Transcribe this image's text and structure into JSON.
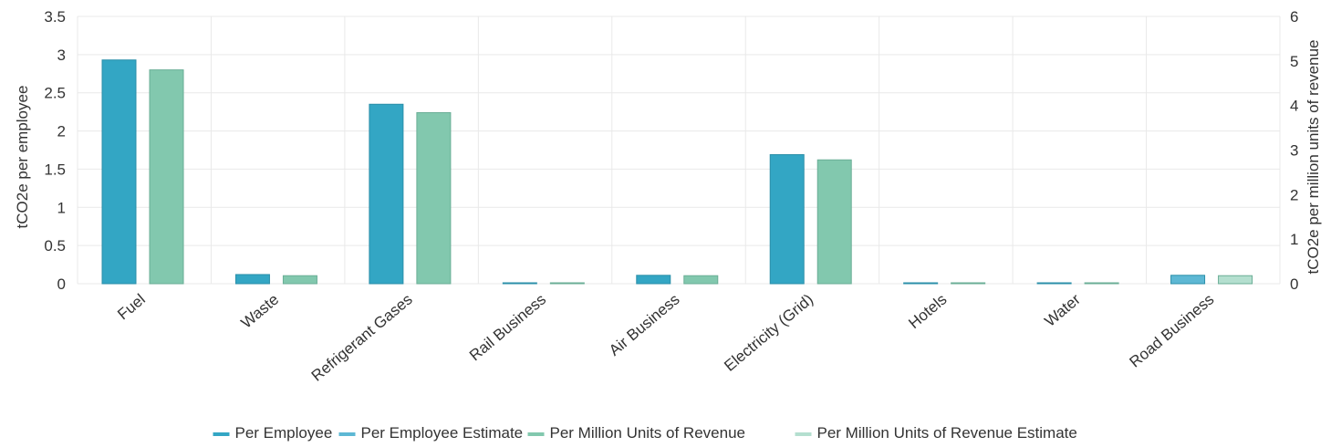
{
  "chart_data": {
    "type": "bar",
    "categories": [
      "Fuel",
      "Waste",
      "Refrigerant Gases",
      "Rail Business",
      "Air Business",
      "Electricity (Grid)",
      "Hotels",
      "Water",
      "Road Business"
    ],
    "series": [
      {
        "name": "Per Employee",
        "axis": "left",
        "color": "#33a6c4",
        "values": [
          2.93,
          0.12,
          2.35,
          0.005,
          0.11,
          1.69,
          0.005,
          0.005,
          null
        ]
      },
      {
        "name": "Per Employee Estimate",
        "axis": "left",
        "color": "#5db8d4",
        "values": [
          null,
          null,
          null,
          null,
          null,
          null,
          null,
          null,
          0.11
        ]
      },
      {
        "name": "Per Million Units of Revenue",
        "axis": "right",
        "color": "#82c8ae",
        "values": [
          4.8,
          0.18,
          3.84,
          0.008,
          0.18,
          2.78,
          0.008,
          0.008,
          null
        ]
      },
      {
        "name": "Per Million Units of Revenue Estimate",
        "axis": "right",
        "color": "#b4dfcf",
        "values": [
          null,
          null,
          null,
          null,
          null,
          null,
          null,
          null,
          0.18
        ]
      }
    ],
    "ylabel": "tCO2e per employee",
    "y2label": "tCO2e per million units of revenue",
    "ylim": [
      0,
      3.5
    ],
    "y2lim": [
      0,
      6
    ],
    "yticks": [
      "0",
      "0.5",
      "1",
      "1.5",
      "2",
      "2.5",
      "3",
      "3.5"
    ],
    "y2ticks": [
      "0",
      "1",
      "2",
      "3",
      "4",
      "5",
      "6"
    ],
    "grid": true,
    "legend_position": "bottom"
  }
}
